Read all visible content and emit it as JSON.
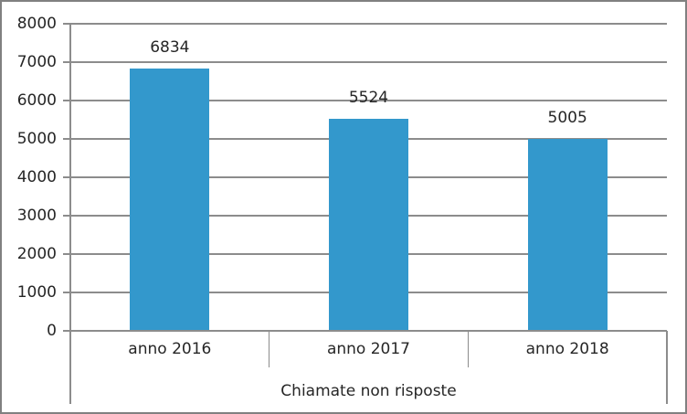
{
  "chart_data": {
    "type": "bar",
    "categories": [
      "anno 2016",
      "anno 2017",
      "anno 2018"
    ],
    "values": [
      6834,
      5524,
      5005
    ],
    "data_labels": [
      "6834",
      "5524",
      "5005"
    ],
    "title": "",
    "xlabel": "Chiamate non risposte",
    "ylabel": "",
    "ylim": [
      0,
      8000
    ],
    "ytick_step": 1000,
    "ytick_labels": [
      "0",
      "1000",
      "2000",
      "3000",
      "4000",
      "5000",
      "6000",
      "7000",
      "8000"
    ],
    "grid": true,
    "legend_position": "none",
    "colors": {
      "bar": "#3398CC",
      "gridline": "#8C8C8C",
      "axis": "#8C8C8C",
      "text": "#262626",
      "frame_border": "#808080",
      "background": "#ffffff"
    }
  }
}
